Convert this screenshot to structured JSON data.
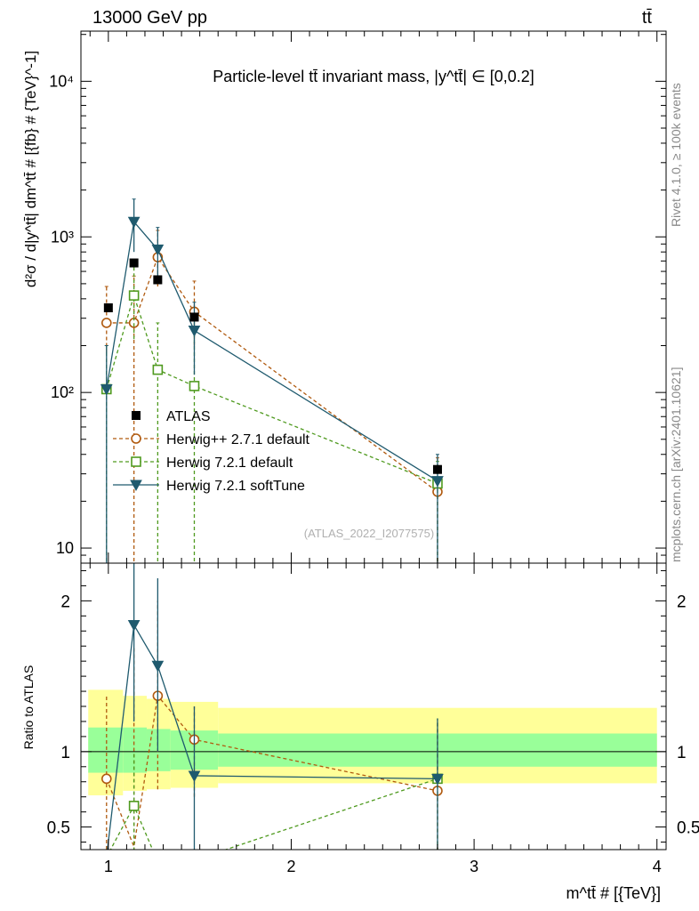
{
  "header": {
    "left": "13000 GeV pp",
    "right": "tt̄"
  },
  "side": {
    "rivet": "Rivet 4.1.0, ≥ 100k events",
    "mcplots": "mcplots.cern.ch [arXiv:2401.10621]"
  },
  "chart_data": {
    "type": "scatter",
    "title": "Particle-level tt̄ invariant mass, |y^tt̄| ∈ [0,0.2]",
    "watermark": "(ATLAS_2022_I2077575)",
    "xlabel": "m^tt̄ # [{TeV}]",
    "ylabel": "d²σ / d|y^tt̄| dm^tt̄ # [{fb} # {TeV}^-1]",
    "ratio_ylabel": "Ratio to ATLAS",
    "xlim": [
      0.85,
      4.05
    ],
    "ylim_main": [
      8,
      21000
    ],
    "ylim_ratio": [
      0.35,
      2.25
    ],
    "main_yticks": [
      {
        "v": 10,
        "label": "10"
      },
      {
        "v": 100,
        "label": "10²"
      },
      {
        "v": 1000,
        "label": "10³"
      },
      {
        "v": 10000,
        "label": "10⁴"
      }
    ],
    "ratio_yticks": [
      {
        "v": 0.5,
        "label": "0.5"
      },
      {
        "v": 1,
        "label": "1"
      },
      {
        "v": 2,
        "label": "2"
      }
    ],
    "xticks": [
      {
        "v": 1,
        "label": "1"
      },
      {
        "v": 2,
        "label": "2"
      },
      {
        "v": 3,
        "label": "3"
      },
      {
        "v": 4,
        "label": "4"
      }
    ],
    "bands": [
      {
        "x0": 0.89,
        "x1": 1.08,
        "in": [
          0.86,
          1.16
        ],
        "out": [
          0.71,
          1.41
        ]
      },
      {
        "x0": 1.08,
        "x1": 1.21,
        "in": [
          0.86,
          1.16
        ],
        "out": [
          0.74,
          1.37
        ]
      },
      {
        "x0": 1.21,
        "x1": 1.34,
        "in": [
          0.87,
          1.15
        ],
        "out": [
          0.75,
          1.35
        ]
      },
      {
        "x0": 1.34,
        "x1": 1.6,
        "in": [
          0.88,
          1.14
        ],
        "out": [
          0.76,
          1.33
        ]
      },
      {
        "x0": 1.6,
        "x1": 4.0,
        "in": [
          0.9,
          1.12
        ],
        "out": [
          0.79,
          1.29
        ]
      }
    ],
    "data": {
      "name": "ATLAS",
      "x": [
        1.0,
        1.14,
        1.27,
        1.47,
        2.8
      ],
      "y": [
        350,
        680,
        530,
        305,
        32
      ]
    },
    "series": [
      {
        "name": "Herwig++ 2.7.1 default",
        "color": "#b05a0f",
        "marker": "circle",
        "dashed": true,
        "x": [
          0.99,
          1.14,
          1.27,
          1.47,
          2.8
        ],
        "y": [
          280,
          280,
          740,
          330,
          23
        ],
        "ylo": [
          180,
          0,
          480,
          200,
          0
        ],
        "yhi": [
          480,
          560,
          1100,
          520,
          38
        ],
        "ratio": [
          0.82,
          0.37,
          1.37,
          1.08,
          0.74
        ],
        "rlo": [
          0.35,
          0.3,
          0.75,
          0.7,
          0.3
        ],
        "rhi": [
          1.38,
          1.7,
          2.0,
          1.3,
          1.2
        ]
      },
      {
        "name": "Herwig 7.2.1 default",
        "color": "#4f9a1f",
        "marker": "square",
        "dashed": true,
        "x": [
          0.99,
          1.14,
          1.27,
          1.47,
          2.8
        ],
        "y": [
          105,
          420,
          140,
          110,
          26
        ],
        "ylo": [
          0,
          220,
          0,
          0,
          0
        ],
        "yhi": [
          200,
          650,
          280,
          300,
          36
        ],
        "ratio": [
          0.3,
          0.64,
          0.27,
          0.28,
          0.82
        ],
        "rlo": [
          0.3,
          0.3,
          0.3,
          0.3,
          0.3
        ],
        "rhi": [
          0.3,
          1.0,
          0.3,
          0.3,
          1.22
        ]
      },
      {
        "name": "Herwig 7.2.1 softTune",
        "color": "#1f5a6e",
        "marker": "triangle-down",
        "dashed": false,
        "x": [
          0.99,
          1.14,
          1.27,
          1.47,
          2.8
        ],
        "y": [
          105,
          1250,
          830,
          250,
          27
        ],
        "ylo": [
          0,
          800,
          500,
          130,
          0
        ],
        "yhi": [
          200,
          1750,
          1150,
          380,
          40
        ],
        "ratio": [
          0.3,
          1.84,
          1.57,
          0.84,
          0.82
        ],
        "rlo": [
          0.3,
          1.2,
          1.0,
          0.3,
          0.3
        ],
        "rhi": [
          0.3,
          2.5,
          2.15,
          1.3,
          1.22
        ]
      }
    ]
  }
}
